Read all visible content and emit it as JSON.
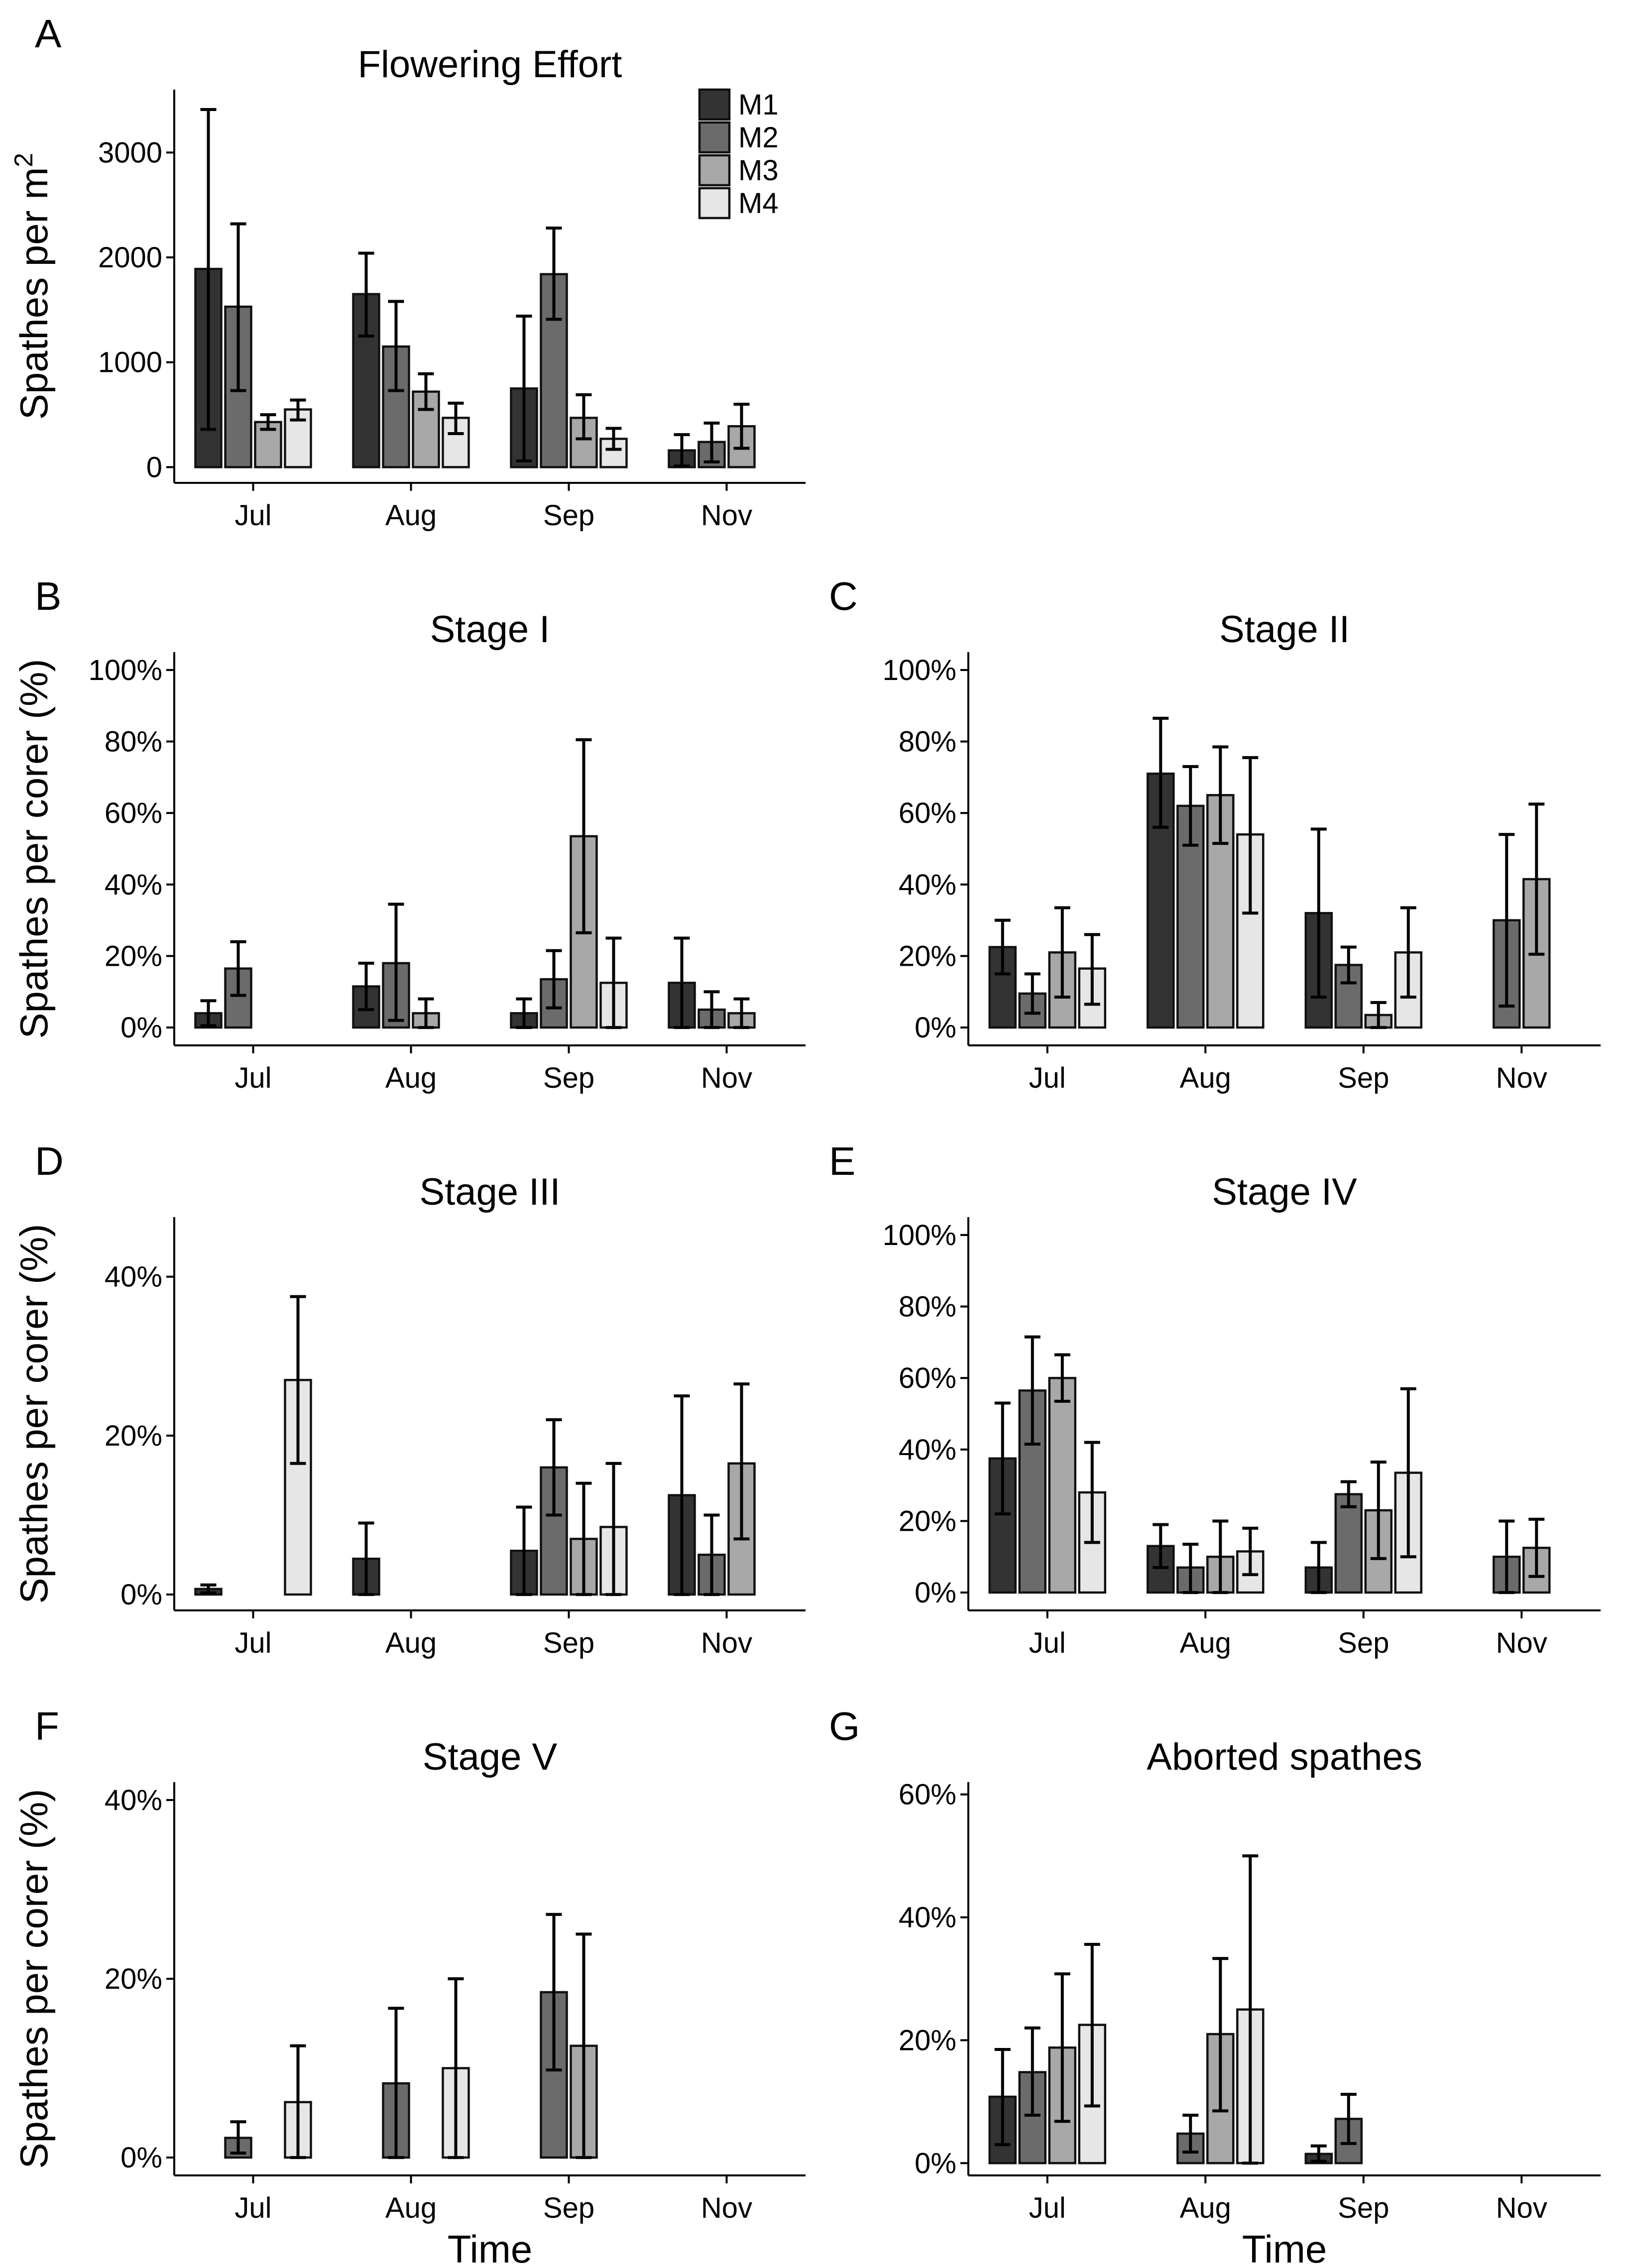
{
  "figure": {
    "series_names": [
      "M1",
      "M2",
      "M3",
      "M4"
    ],
    "series_colors": [
      "#333333",
      "#6b6b6b",
      "#a8a8a8",
      "#e6e6e6"
    ],
    "x_axis_title": "Time"
  },
  "chart_data": [
    {
      "id": "A",
      "letter": "A",
      "type": "bar",
      "title": "Flowering Effort",
      "ylabel": "Spathes per m",
      "ylabel_sup": "2",
      "categories": [
        "Jul",
        "Aug",
        "Sep",
        "Nov"
      ],
      "ylim": [
        -150,
        3600
      ],
      "yticks": [
        0,
        1000,
        2000,
        3000
      ],
      "ytick_labels": [
        "0",
        "1000",
        "2000",
        "3000"
      ],
      "legend": "top-right",
      "series": [
        {
          "name": "M1",
          "values": [
            1890,
            1650,
            750,
            160
          ],
          "err_low": [
            360,
            1250,
            60,
            10
          ],
          "err_high": [
            3410,
            2040,
            1440,
            310
          ]
        },
        {
          "name": "M2",
          "values": [
            1530,
            1150,
            1840,
            240
          ],
          "err_low": [
            730,
            730,
            1410,
            50
          ],
          "err_high": [
            2320,
            1580,
            2280,
            420
          ]
        },
        {
          "name": "M3",
          "values": [
            430,
            720,
            470,
            390
          ],
          "err_low": [
            360,
            550,
            270,
            180
          ],
          "err_high": [
            500,
            890,
            690,
            600
          ]
        },
        {
          "name": "M4",
          "values": [
            550,
            470,
            270,
            0
          ],
          "err_low": [
            450,
            320,
            170,
            0
          ],
          "err_high": [
            640,
            610,
            370,
            0
          ]
        }
      ]
    },
    {
      "id": "B",
      "letter": "B",
      "type": "bar",
      "title": "Stage I",
      "ylabel": "Spathes per corer (%)",
      "categories": [
        "Jul",
        "Aug",
        "Sep",
        "Nov"
      ],
      "ylim": [
        -5,
        105
      ],
      "yticks": [
        0,
        20,
        40,
        60,
        80,
        100
      ],
      "ytick_labels": [
        "0%",
        "20%",
        "40%",
        "60%",
        "80%",
        "100%"
      ],
      "series": [
        {
          "name": "M1",
          "values": [
            4,
            11.5,
            4,
            12.5
          ],
          "err_low": [
            0.5,
            5,
            0,
            0
          ],
          "err_high": [
            7.5,
            18,
            8,
            25
          ]
        },
        {
          "name": "M2",
          "values": [
            16.5,
            18,
            13.5,
            5
          ],
          "err_low": [
            9,
            2,
            5.5,
            0
          ],
          "err_high": [
            24,
            34.5,
            21.5,
            10
          ]
        },
        {
          "name": "M3",
          "values": [
            0,
            4,
            53.5,
            4
          ],
          "err_low": [
            0,
            0,
            26.5,
            0
          ],
          "err_high": [
            0,
            8,
            80.5,
            8
          ]
        },
        {
          "name": "M4",
          "values": [
            0,
            0,
            12.5,
            0
          ],
          "err_low": [
            0,
            0,
            0,
            0
          ],
          "err_high": [
            0,
            0,
            25,
            0
          ]
        }
      ]
    },
    {
      "id": "C",
      "letter": "C",
      "type": "bar",
      "title": "Stage II",
      "ylabel": "",
      "categories": [
        "Jul",
        "Aug",
        "Sep",
        "Nov"
      ],
      "ylim": [
        -5,
        105
      ],
      "yticks": [
        0,
        20,
        40,
        60,
        80,
        100
      ],
      "ytick_labels": [
        "0%",
        "20%",
        "40%",
        "60%",
        "80%",
        "100%"
      ],
      "series": [
        {
          "name": "M1",
          "values": [
            22.5,
            71,
            32,
            0
          ],
          "err_low": [
            15,
            56,
            8.5,
            0
          ],
          "err_high": [
            30,
            86.5,
            55.5,
            0
          ]
        },
        {
          "name": "M2",
          "values": [
            9.5,
            62,
            17.5,
            30
          ],
          "err_low": [
            4,
            51,
            12.5,
            6
          ],
          "err_high": [
            15,
            73,
            22.5,
            54
          ]
        },
        {
          "name": "M3",
          "values": [
            21,
            65,
            3.5,
            41.5
          ],
          "err_low": [
            8.5,
            51.5,
            0,
            20.5
          ],
          "err_high": [
            33.5,
            78.5,
            7,
            62.5
          ]
        },
        {
          "name": "M4",
          "values": [
            16.5,
            54,
            21,
            0
          ],
          "err_low": [
            6.5,
            32,
            8.5,
            0
          ],
          "err_high": [
            26,
            75.5,
            33.5,
            0
          ]
        }
      ]
    },
    {
      "id": "D",
      "letter": "D",
      "type": "bar",
      "title": "Stage III",
      "ylabel": "Spathes per corer (%)",
      "categories": [
        "Jul",
        "Aug",
        "Sep",
        "Nov"
      ],
      "ylim": [
        -2,
        47.5
      ],
      "yticks": [
        0,
        20,
        40
      ],
      "ytick_labels": [
        "0%",
        "20%",
        "40%"
      ],
      "series": [
        {
          "name": "M1",
          "values": [
            0.7,
            4.5,
            5.5,
            12.5
          ],
          "err_low": [
            0.2,
            0,
            0,
            0
          ],
          "err_high": [
            1.2,
            9,
            11,
            25
          ]
        },
        {
          "name": "M2",
          "values": [
            0,
            0,
            16,
            5
          ],
          "err_low": [
            0,
            0,
            10,
            0
          ],
          "err_high": [
            0,
            0,
            22,
            10
          ]
        },
        {
          "name": "M3",
          "values": [
            0,
            0,
            7,
            16.5
          ],
          "err_low": [
            0,
            0,
            0,
            7
          ],
          "err_high": [
            0,
            0,
            14,
            26.5
          ]
        },
        {
          "name": "M4",
          "values": [
            27,
            0,
            8.5,
            0
          ],
          "err_low": [
            16.5,
            0,
            0,
            0
          ],
          "err_high": [
            37.5,
            0,
            16.5,
            0
          ]
        }
      ]
    },
    {
      "id": "E",
      "letter": "E",
      "type": "bar",
      "title": "Stage IV",
      "ylabel": "",
      "categories": [
        "Jul",
        "Aug",
        "Sep",
        "Nov"
      ],
      "ylim": [
        -5,
        105
      ],
      "yticks": [
        0,
        20,
        40,
        60,
        80,
        100
      ],
      "ytick_labels": [
        "0%",
        "20%",
        "40%",
        "60%",
        "80%",
        "100%"
      ],
      "series": [
        {
          "name": "M1",
          "values": [
            37.5,
            13,
            7,
            0
          ],
          "err_low": [
            22,
            7,
            0,
            0
          ],
          "err_high": [
            53,
            19,
            14,
            0
          ]
        },
        {
          "name": "M2",
          "values": [
            56.5,
            7,
            27.5,
            10
          ],
          "err_low": [
            41.5,
            0,
            24,
            0
          ],
          "err_high": [
            71.5,
            13.5,
            31,
            20
          ]
        },
        {
          "name": "M3",
          "values": [
            60,
            10,
            23,
            12.5
          ],
          "err_low": [
            53.5,
            0,
            9.5,
            4.5
          ],
          "err_high": [
            66.5,
            20,
            36.5,
            20.5
          ]
        },
        {
          "name": "M4",
          "values": [
            28,
            11.5,
            33.5,
            0
          ],
          "err_low": [
            14,
            5,
            10,
            0
          ],
          "err_high": [
            42,
            18,
            57,
            0
          ]
        }
      ]
    },
    {
      "id": "F",
      "letter": "F",
      "type": "bar",
      "title": "Stage V",
      "ylabel": "Spathes per corer (%)",
      "xlabel": "Time",
      "categories": [
        "Jul",
        "Aug",
        "Sep",
        "Nov"
      ],
      "ylim": [
        -2,
        42
      ],
      "yticks": [
        0,
        20,
        40
      ],
      "ytick_labels": [
        "0%",
        "20%",
        "40%"
      ],
      "series": [
        {
          "name": "M1",
          "values": [
            0,
            0,
            0,
            0
          ],
          "err_low": [
            0,
            0,
            0,
            0
          ],
          "err_high": [
            0,
            0,
            0,
            0
          ]
        },
        {
          "name": "M2",
          "values": [
            2.2,
            8.3,
            18.5,
            0
          ],
          "err_low": [
            0.5,
            0,
            9.8,
            0
          ],
          "err_high": [
            4,
            16.7,
            27.2,
            0
          ]
        },
        {
          "name": "M3",
          "values": [
            0,
            0,
            12.5,
            0
          ],
          "err_low": [
            0,
            0,
            0,
            0
          ],
          "err_high": [
            0,
            0,
            25,
            0
          ]
        },
        {
          "name": "M4",
          "values": [
            6.2,
            10,
            0,
            0
          ],
          "err_low": [
            0,
            0,
            0,
            0
          ],
          "err_high": [
            12.5,
            20,
            0,
            0
          ]
        }
      ]
    },
    {
      "id": "G",
      "letter": "G",
      "type": "bar",
      "title": "Aborted spathes",
      "ylabel": "",
      "xlabel": "Time",
      "categories": [
        "Jul",
        "Aug",
        "Sep",
        "Nov"
      ],
      "ylim": [
        -2,
        62
      ],
      "yticks": [
        0,
        20,
        40,
        60
      ],
      "ytick_labels": [
        "0%",
        "20%",
        "40%",
        "60%"
      ],
      "series": [
        {
          "name": "M1",
          "values": [
            10.8,
            0,
            1.5,
            0
          ],
          "err_low": [
            3,
            0,
            0.3,
            0
          ],
          "err_high": [
            18.5,
            0,
            2.8,
            0
          ]
        },
        {
          "name": "M2",
          "values": [
            14.8,
            4.8,
            7.2,
            0
          ],
          "err_low": [
            7.8,
            1.8,
            3.2,
            0
          ],
          "err_high": [
            22,
            7.8,
            11.2,
            0
          ]
        },
        {
          "name": "M3",
          "values": [
            18.8,
            21,
            0,
            0
          ],
          "err_low": [
            6.8,
            8.5,
            0,
            0
          ],
          "err_high": [
            30.8,
            33.3,
            0,
            0
          ]
        },
        {
          "name": "M4",
          "values": [
            22.5,
            25,
            0,
            0
          ],
          "err_low": [
            9.3,
            0,
            0,
            0
          ],
          "err_high": [
            35.6,
            50,
            0,
            0
          ]
        }
      ]
    }
  ]
}
